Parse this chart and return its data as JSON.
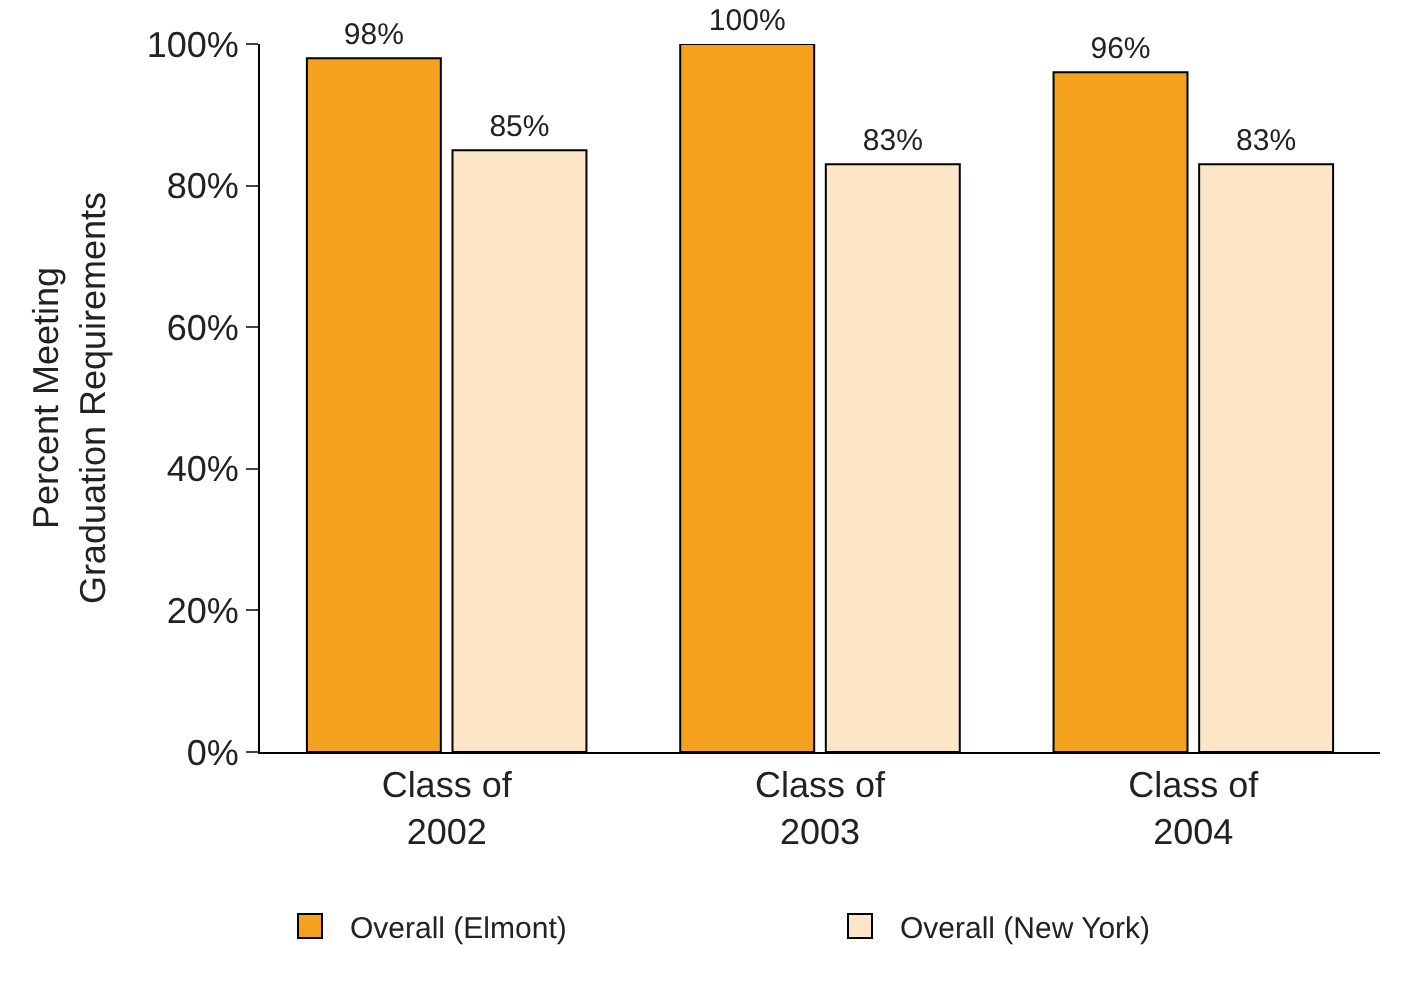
{
  "chart_data": {
    "type": "bar",
    "ylabel": "Percent Meeting\nGraduation Requirements",
    "categories": [
      "Class of\n2002",
      "Class of\n2003",
      "Class of\n2004"
    ],
    "series": [
      {
        "name": "Overall (Elmont)",
        "color": "#f4a11d",
        "values": [
          98,
          100,
          96
        ],
        "value_labels": [
          "98%",
          "100%",
          "96%"
        ]
      },
      {
        "name": "Overall (New York)",
        "color": "#fde5c8",
        "values": [
          85,
          83,
          83
        ],
        "value_labels": [
          "85%",
          "83%",
          "83%"
        ]
      }
    ],
    "ylim": [
      0,
      100
    ],
    "yticks": [
      {
        "value": 0,
        "label": "0%"
      },
      {
        "value": 20,
        "label": "20%"
      },
      {
        "value": 40,
        "label": "40%"
      },
      {
        "value": 60,
        "label": "60%"
      },
      {
        "value": 80,
        "label": "80%"
      },
      {
        "value": 100,
        "label": "100%"
      }
    ],
    "legend": "bottom"
  }
}
